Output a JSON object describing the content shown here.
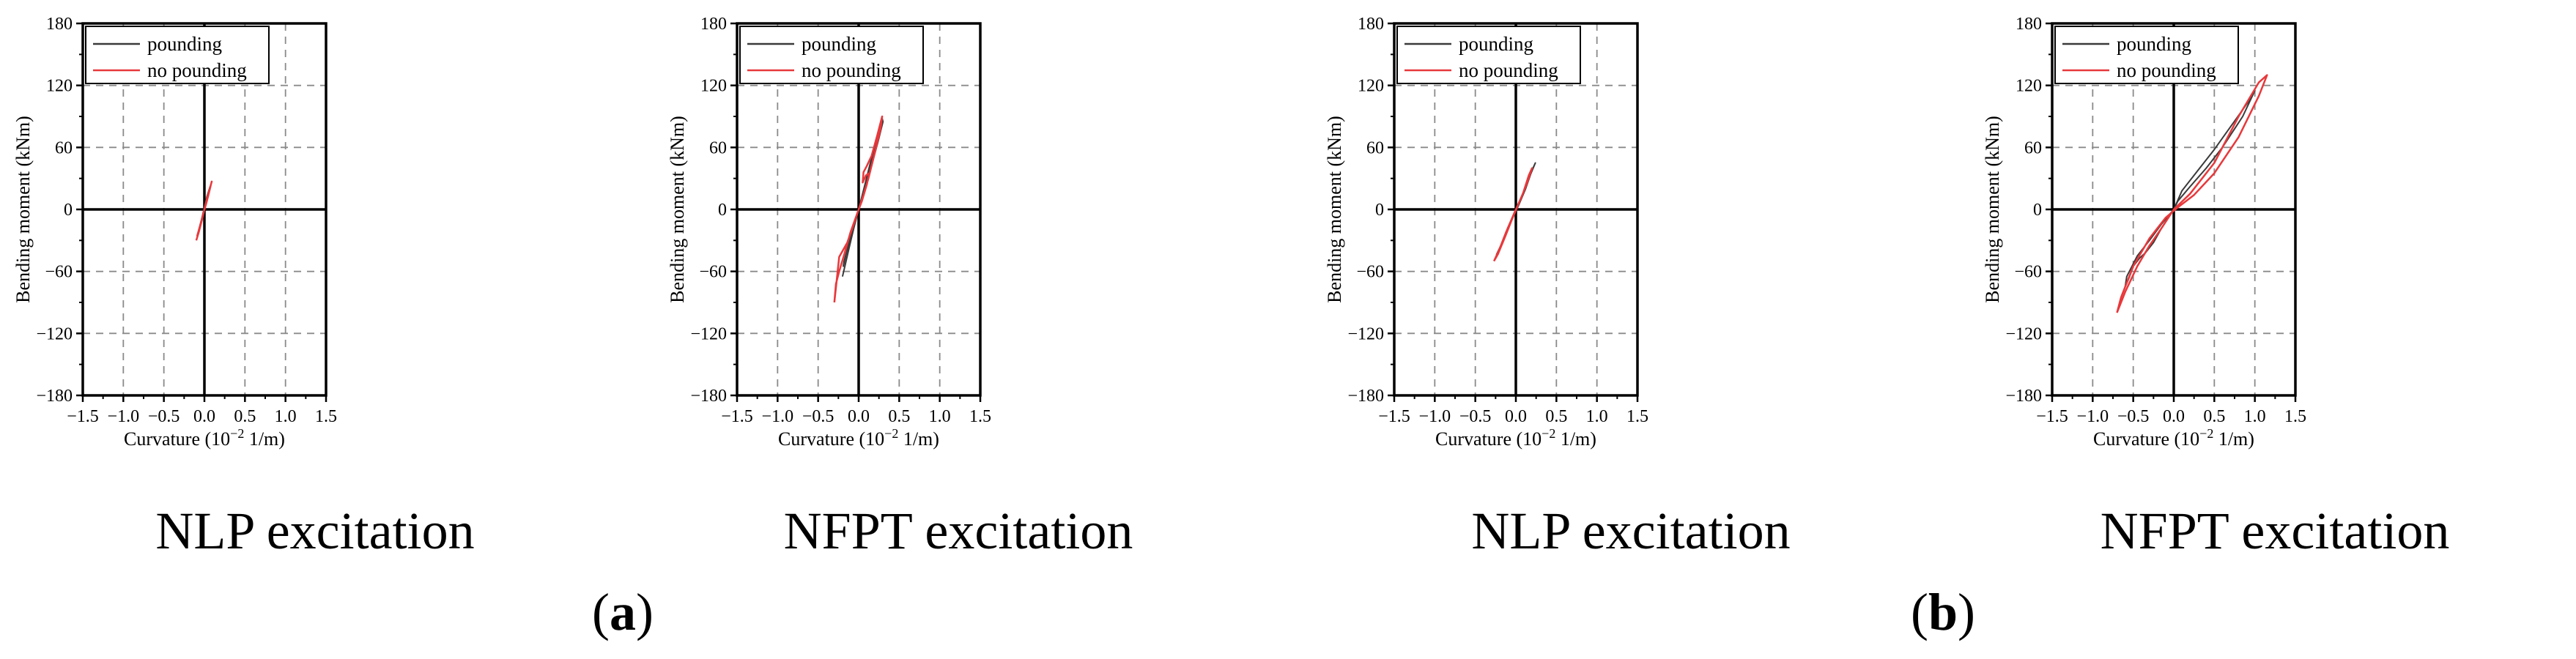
{
  "figure": {
    "panel_labels": [
      {
        "open": "(",
        "letter": "a",
        "close": ")"
      },
      {
        "open": "(",
        "letter": "b",
        "close": ")"
      }
    ]
  },
  "colors": {
    "pounding": "#3a3a3a",
    "no_pounding": "#e8383b",
    "grid": "#8a8a8a",
    "axis": "#000000"
  },
  "chart_data": [
    {
      "type": "line",
      "caption": "NLP excitation",
      "xlabel": "Curvature (10",
      "xlabel_sup": "−2",
      "xlabel_unit": " 1/m)",
      "ylabel": "Bending moment (kNm)",
      "xlim": [
        -1.5,
        1.5
      ],
      "ylim": [
        -180,
        180
      ],
      "xticks": [
        -1.5,
        -1.0,
        -0.5,
        0,
        0.5,
        1.0,
        1.5
      ],
      "xtick_labels": [
        "−1.5",
        "−1.0",
        "−0.5",
        "0.0",
        "0.5",
        "1.0",
        "1.5"
      ],
      "yticks": [
        -180,
        -120,
        -60,
        0,
        60,
        120,
        180
      ],
      "ytick_labels": [
        "−180",
        "−120",
        "−60",
        "0",
        "60",
        "120",
        "180"
      ],
      "legend": [
        "pounding",
        "no pounding"
      ],
      "series": [
        {
          "name": "pounding",
          "x": [
            -0.08,
            -0.05,
            -0.02,
            0.0,
            0.02,
            0.05,
            0.07,
            0.03,
            0.0,
            -0.03,
            -0.07
          ],
          "y": [
            -24,
            -15,
            -6,
            0,
            7,
            16,
            22,
            12,
            2,
            -8,
            -20
          ]
        },
        {
          "name": "no pounding",
          "x": [
            -0.1,
            -0.07,
            -0.03,
            0.0,
            0.03,
            0.06,
            0.09,
            0.08,
            0.05,
            0.02,
            -0.01,
            -0.04,
            -0.09
          ],
          "y": [
            -30,
            -22,
            -10,
            0,
            10,
            18,
            27,
            24,
            14,
            5,
            -3,
            -12,
            -26
          ]
        }
      ]
    },
    {
      "type": "line",
      "caption": "NFPT excitation",
      "xlabel": "Curvature (10",
      "xlabel_sup": "−2",
      "xlabel_unit": " 1/m)",
      "ylabel": "Bending moment (kNm)",
      "xlim": [
        -1.5,
        1.5
      ],
      "ylim": [
        -180,
        180
      ],
      "xticks": [
        -1.5,
        -1.0,
        -0.5,
        0,
        0.5,
        1.0,
        1.5
      ],
      "xtick_labels": [
        "−1.5",
        "−1.0",
        "−0.5",
        "0.0",
        "0.5",
        "1.0",
        "1.5"
      ],
      "yticks": [
        -180,
        -120,
        -60,
        0,
        60,
        120,
        180
      ],
      "ytick_labels": [
        "−180",
        "−120",
        "−60",
        "0",
        "60",
        "120",
        "180"
      ],
      "legend": [
        "pounding",
        "no pounding"
      ],
      "series": [
        {
          "name": "pounding",
          "x": [
            -0.2,
            -0.17,
            -0.12,
            -0.06,
            0.0,
            0.08,
            0.16,
            0.23,
            0.29,
            0.3,
            0.24,
            0.15,
            0.07,
            0.0,
            -0.06,
            -0.13,
            -0.19,
            -0.18,
            -0.12,
            -0.05,
            0.0,
            0.1,
            0.2,
            0.28
          ],
          "y": [
            -65,
            -55,
            -38,
            -18,
            0,
            25,
            50,
            72,
            88,
            85,
            66,
            40,
            17,
            0,
            -16,
            -35,
            -55,
            -50,
            -33,
            -13,
            0,
            30,
            60,
            84
          ]
        },
        {
          "name": "no pounding",
          "x": [
            -0.3,
            -0.28,
            -0.24,
            -0.18,
            -0.1,
            0.0,
            0.06,
            0.12,
            0.2,
            0.27,
            0.29,
            0.23,
            0.16,
            0.1,
            0.06,
            0.05,
            0.09,
            0.13,
            0.1,
            0.04,
            0.0,
            -0.06,
            -0.14,
            -0.24,
            -0.3
          ],
          "y": [
            -90,
            -72,
            -60,
            -44,
            -22,
            0,
            14,
            30,
            55,
            78,
            90,
            72,
            52,
            42,
            36,
            26,
            33,
            35,
            24,
            8,
            0,
            -14,
            -32,
            -46,
            -90
          ]
        }
      ]
    },
    {
      "type": "line",
      "caption": "NLP excitation",
      "xlabel": "Curvature (10",
      "xlabel_sup": "−2",
      "xlabel_unit": " 1/m)",
      "ylabel": "Bending moment (kNm)",
      "xlim": [
        -1.5,
        1.5
      ],
      "ylim": [
        -180,
        180
      ],
      "xticks": [
        -1.5,
        -1.0,
        -0.5,
        0,
        0.5,
        1.0,
        1.5
      ],
      "xtick_labels": [
        "−1.5",
        "−1.0",
        "−0.5",
        "0.0",
        "0.5",
        "1.0",
        "1.5"
      ],
      "yticks": [
        -180,
        -120,
        -60,
        0,
        60,
        120,
        180
      ],
      "ytick_labels": [
        "−180",
        "−120",
        "−60",
        "0",
        "60",
        "120",
        "180"
      ],
      "legend": [
        "pounding",
        "no pounding"
      ],
      "series": [
        {
          "name": "pounding",
          "x": [
            -0.24,
            -0.18,
            -0.1,
            0.0,
            0.08,
            0.16,
            0.24,
            0.2,
            0.12,
            0.04,
            -0.04,
            -0.12,
            -0.2,
            -0.24
          ],
          "y": [
            -44,
            -34,
            -18,
            0,
            14,
            30,
            45,
            38,
            20,
            5,
            -8,
            -22,
            -38,
            -44
          ]
        },
        {
          "name": "no pounding",
          "x": [
            -0.27,
            -0.2,
            -0.12,
            0.0,
            0.07,
            0.14,
            0.2,
            0.16,
            0.09,
            0.02,
            -0.05,
            -0.13,
            -0.22,
            -0.27
          ],
          "y": [
            -50,
            -38,
            -22,
            0,
            12,
            26,
            40,
            33,
            16,
            3,
            -10,
            -26,
            -43,
            -50
          ]
        }
      ]
    },
    {
      "type": "line",
      "caption": "NFPT excitation",
      "xlabel": "Curvature (10",
      "xlabel_sup": "−2",
      "xlabel_unit": " 1/m)",
      "ylabel": "Bending moment (kNm)",
      "xlim": [
        -1.5,
        1.5
      ],
      "ylim": [
        -180,
        180
      ],
      "xticks": [
        -1.5,
        -1.0,
        -0.5,
        0,
        0.5,
        1.0,
        1.5
      ],
      "xtick_labels": [
        "−1.5",
        "−1.0",
        "−0.5",
        "0.0",
        "0.5",
        "1.0",
        "1.5"
      ],
      "yticks": [
        -180,
        -120,
        -60,
        0,
        60,
        120,
        180
      ],
      "ytick_labels": [
        "−180",
        "−120",
        "−60",
        "0",
        "60",
        "120",
        "180"
      ],
      "legend": [
        "pounding",
        "no pounding"
      ],
      "series": [
        {
          "name": "pounding",
          "x": [
            -0.6,
            -0.55,
            -0.5,
            -0.42,
            -0.35,
            -0.25,
            -0.15,
            0.0,
            0.1,
            0.3,
            0.5,
            0.7,
            0.9,
            1.0,
            0.85,
            0.6,
            0.4,
            0.2,
            0.05,
            0.0,
            -0.15,
            -0.3,
            -0.45,
            -0.58,
            -0.6
          ],
          "y": [
            -75,
            -66,
            -55,
            -47,
            -42,
            -32,
            -18,
            0,
            18,
            38,
            58,
            80,
            102,
            115,
            90,
            60,
            40,
            22,
            8,
            0,
            -14,
            -30,
            -45,
            -65,
            -75
          ]
        },
        {
          "name": "no pounding",
          "x": [
            -0.7,
            -0.6,
            -0.45,
            -0.3,
            -0.15,
            0.0,
            0.2,
            0.5,
            0.8,
            1.05,
            1.15,
            1.05,
            0.8,
            0.5,
            0.25,
            0.05,
            -0.1,
            -0.3,
            -0.5,
            -0.65,
            -0.7
          ],
          "y": [
            -100,
            -80,
            -55,
            -35,
            -18,
            0,
            15,
            45,
            90,
            123,
            130,
            110,
            70,
            35,
            14,
            2,
            -8,
            -28,
            -55,
            -85,
            -100
          ]
        }
      ]
    }
  ]
}
